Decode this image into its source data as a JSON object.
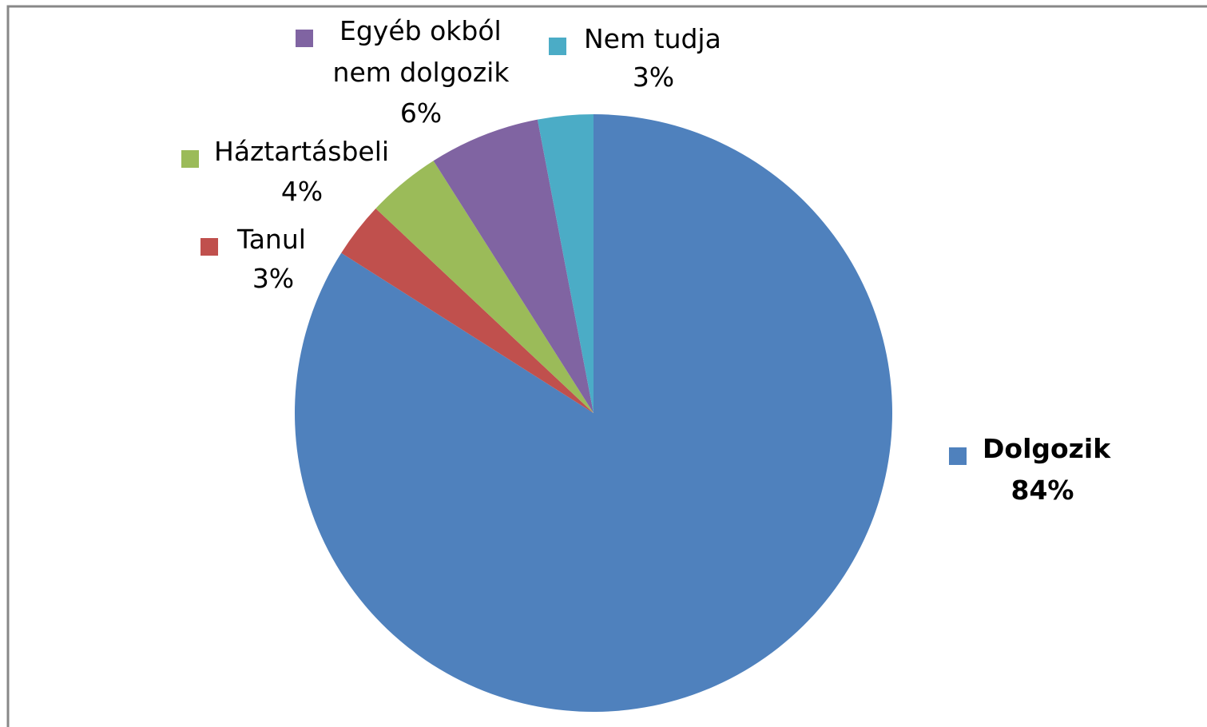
{
  "chart_data": {
    "type": "pie",
    "categories": [
      "Dolgozik",
      "Tanul",
      "Háztartásbeli",
      "Egyéb okból nem dolgozik",
      "Nem tudja"
    ],
    "values": [
      84,
      3,
      4,
      6,
      3
    ],
    "value_labels": [
      "84%",
      "3%",
      "4%",
      "6%",
      "3%"
    ],
    "colors": [
      "#4f81bd",
      "#c0504d",
      "#9bbb59",
      "#8064a2",
      "#4bacc6"
    ]
  }
}
